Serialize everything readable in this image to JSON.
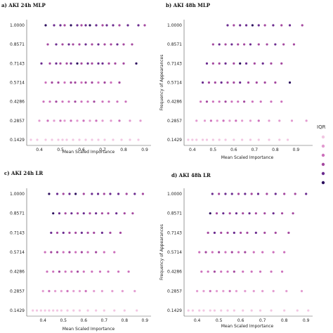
{
  "figure": {
    "legend_title": "IQR",
    "legend_colors": [
      "#f2c6e2",
      "#e29ad0",
      "#cc6fbb",
      "#a4489f",
      "#6b2b8f",
      "#2d0f5e"
    ]
  },
  "chart_data": [
    {
      "type": "scatter",
      "title": "a) AKI 24h MLP",
      "xlabel": "Mean Scaled Importance",
      "ylabel": "",
      "xlim": [
        0.34,
        0.93
      ],
      "xticks": [
        0.4,
        0.5,
        0.6,
        0.7,
        0.8,
        0.9
      ],
      "yticks": [
        "0.1429",
        "0.2857",
        "0.4286",
        "0.5714",
        "0.7143",
        "0.8571",
        "1.0000"
      ],
      "rows": [
        {
          "y": "1.0000",
          "x": [
            0.43,
            0.47,
            0.5,
            0.52,
            0.55,
            0.58,
            0.6,
            0.62,
            0.64,
            0.67,
            0.7,
            0.72,
            0.75,
            0.78,
            0.82,
            0.87,
            0.9
          ],
          "c": [
            5,
            4,
            4,
            3,
            5,
            4,
            3,
            4,
            5,
            4,
            3,
            4,
            4,
            3,
            4,
            4,
            3
          ]
        },
        {
          "y": "0.8571",
          "x": [
            0.44,
            0.48,
            0.51,
            0.54,
            0.56,
            0.59,
            0.62,
            0.65,
            0.68,
            0.71,
            0.74,
            0.77,
            0.8,
            0.84
          ],
          "c": [
            3,
            4,
            3,
            4,
            3,
            3,
            4,
            3,
            4,
            3,
            3,
            4,
            3,
            3
          ]
        },
        {
          "y": "0.7143",
          "x": [
            0.41,
            0.45,
            0.48,
            0.5,
            0.53,
            0.55,
            0.58,
            0.6,
            0.63,
            0.65,
            0.68,
            0.7,
            0.73,
            0.76,
            0.8,
            0.86
          ],
          "c": [
            4,
            3,
            4,
            3,
            3,
            4,
            5,
            3,
            4,
            3,
            4,
            4,
            3,
            3,
            3,
            5
          ]
        },
        {
          "y": "0.5714",
          "x": [
            0.43,
            0.46,
            0.49,
            0.52,
            0.55,
            0.57,
            0.6,
            0.62,
            0.65,
            0.68,
            0.71,
            0.74,
            0.78
          ],
          "c": [
            2,
            3,
            3,
            2,
            3,
            3,
            2,
            3,
            3,
            2,
            3,
            2,
            3
          ]
        },
        {
          "y": "0.4286",
          "x": [
            0.42,
            0.45,
            0.48,
            0.51,
            0.54,
            0.57,
            0.6,
            0.63,
            0.66,
            0.7,
            0.73,
            0.77,
            0.81
          ],
          "c": [
            2,
            2,
            3,
            2,
            2,
            3,
            2,
            2,
            3,
            2,
            2,
            2,
            2
          ]
        },
        {
          "y": "0.2857",
          "x": [
            0.4,
            0.44,
            0.47,
            0.5,
            0.52,
            0.55,
            0.58,
            0.61,
            0.64,
            0.67,
            0.7,
            0.74,
            0.78,
            0.83,
            0.88
          ],
          "c": [
            1,
            2,
            1,
            2,
            1,
            2,
            1,
            2,
            1,
            2,
            1,
            1,
            2,
            1,
            1
          ]
        },
        {
          "y": "0.1429",
          "x": [
            0.36,
            0.39,
            0.43,
            0.46,
            0.49,
            0.51,
            0.53,
            0.56,
            0.59,
            0.62,
            0.65,
            0.68,
            0.71,
            0.75,
            0.79,
            0.83,
            0.87
          ],
          "c": [
            0,
            0,
            0,
            0,
            0,
            0,
            0,
            0,
            0,
            0,
            0,
            0,
            0,
            0,
            0,
            0,
            0
          ]
        }
      ]
    },
    {
      "type": "scatter",
      "title": "b) AKI 48h MLP",
      "xlabel": "Mean Scaled Importance",
      "ylabel": "Frequency of Appearances",
      "xlim": [
        0.36,
        0.98
      ],
      "xticks": [
        0.4,
        0.5,
        0.6,
        0.7,
        0.8,
        0.9
      ],
      "yticks": [
        "0.1429",
        "0.2857",
        "0.4286",
        "0.5714",
        "0.7143",
        "0.8571",
        "1.0000"
      ],
      "rows": [
        {
          "y": "1.0000",
          "x": [
            0.57,
            0.6,
            0.63,
            0.66,
            0.69,
            0.72,
            0.75,
            0.79,
            0.83,
            0.87,
            0.93
          ],
          "c": [
            4,
            3,
            4,
            4,
            5,
            4,
            3,
            4,
            3,
            4,
            3
          ]
        },
        {
          "y": "0.8571",
          "x": [
            0.5,
            0.53,
            0.56,
            0.59,
            0.62,
            0.65,
            0.68,
            0.72,
            0.76,
            0.8,
            0.84,
            0.89
          ],
          "c": [
            3,
            4,
            3,
            4,
            3,
            3,
            4,
            3,
            3,
            4,
            3,
            3
          ]
        },
        {
          "y": "0.7143",
          "x": [
            0.47,
            0.5,
            0.53,
            0.56,
            0.6,
            0.63,
            0.66,
            0.7,
            0.74,
            0.78,
            0.83
          ],
          "c": [
            4,
            3,
            3,
            4,
            3,
            5,
            4,
            3,
            4,
            3,
            3
          ]
        },
        {
          "y": "0.5714",
          "x": [
            0.45,
            0.48,
            0.51,
            0.54,
            0.57,
            0.6,
            0.63,
            0.67,
            0.71,
            0.75,
            0.8,
            0.87
          ],
          "c": [
            4,
            3,
            3,
            4,
            3,
            3,
            4,
            3,
            3,
            3,
            3,
            5
          ]
        },
        {
          "y": "0.4286",
          "x": [
            0.44,
            0.47,
            0.5,
            0.53,
            0.56,
            0.59,
            0.62,
            0.65,
            0.69,
            0.73,
            0.78,
            0.83
          ],
          "c": [
            2,
            3,
            2,
            2,
            3,
            2,
            2,
            3,
            2,
            2,
            2,
            2
          ]
        },
        {
          "y": "0.2857",
          "x": [
            0.42,
            0.46,
            0.49,
            0.52,
            0.55,
            0.58,
            0.61,
            0.64,
            0.68,
            0.72,
            0.77,
            0.82,
            0.88,
            0.95
          ],
          "c": [
            1,
            1,
            2,
            1,
            2,
            1,
            2,
            1,
            1,
            2,
            1,
            1,
            1,
            1
          ]
        },
        {
          "y": "0.1429",
          "x": [
            0.38,
            0.4,
            0.42,
            0.45,
            0.47,
            0.5,
            0.53,
            0.56,
            0.6,
            0.64,
            0.68,
            0.72,
            0.77,
            0.82,
            0.86
          ],
          "c": [
            0,
            0,
            0,
            0,
            0,
            0,
            0,
            0,
            0,
            0,
            0,
            0,
            0,
            0,
            0
          ]
        }
      ]
    },
    {
      "type": "scatter",
      "title": "c) AKI 24h LR",
      "xlabel": "Mean Scaled Importance",
      "ylabel": "",
      "xlim": [
        0.32,
        0.93
      ],
      "xticks": [
        0.4,
        0.5,
        0.6,
        0.7,
        0.8,
        0.9
      ],
      "yticks": [
        "0.1429",
        "0.2857",
        "0.4286",
        "0.5714",
        "0.7143",
        "0.8571",
        "1.0000"
      ],
      "rows": [
        {
          "y": "1.0000",
          "x": [
            0.43,
            0.47,
            0.5,
            0.53,
            0.56,
            0.6,
            0.64,
            0.67,
            0.7,
            0.73,
            0.77,
            0.81,
            0.85,
            0.89
          ],
          "c": [
            5,
            4,
            3,
            4,
            5,
            3,
            4,
            4,
            3,
            4,
            4,
            3,
            4,
            3
          ]
        },
        {
          "y": "0.8571",
          "x": [
            0.45,
            0.48,
            0.51,
            0.54,
            0.57,
            0.6,
            0.63,
            0.66,
            0.69,
            0.72,
            0.76,
            0.8,
            0.84
          ],
          "c": [
            5,
            4,
            3,
            4,
            3,
            4,
            3,
            4,
            3,
            3,
            4,
            3,
            3
          ]
        },
        {
          "y": "0.7143",
          "x": [
            0.44,
            0.47,
            0.5,
            0.53,
            0.56,
            0.59,
            0.62,
            0.65,
            0.69,
            0.73,
            0.78
          ],
          "c": [
            4,
            3,
            4,
            3,
            3,
            4,
            3,
            3,
            4,
            3,
            3
          ]
        },
        {
          "y": "0.5714",
          "x": [
            0.41,
            0.44,
            0.47,
            0.5,
            0.53,
            0.56,
            0.59,
            0.62,
            0.66,
            0.7,
            0.75
          ],
          "c": [
            2,
            3,
            3,
            2,
            3,
            2,
            3,
            2,
            3,
            2,
            2
          ]
        },
        {
          "y": "0.4286",
          "x": [
            0.42,
            0.45,
            0.48,
            0.51,
            0.54,
            0.57,
            0.6,
            0.64,
            0.68,
            0.72,
            0.77,
            0.82
          ],
          "c": [
            2,
            2,
            3,
            2,
            2,
            3,
            2,
            2,
            2,
            2,
            2,
            2
          ]
        },
        {
          "y": "0.2857",
          "x": [
            0.4,
            0.43,
            0.46,
            0.49,
            0.52,
            0.55,
            0.58,
            0.61,
            0.65,
            0.69,
            0.74,
            0.79,
            0.85
          ],
          "c": [
            1,
            2,
            1,
            1,
            2,
            1,
            1,
            2,
            1,
            1,
            1,
            1,
            1
          ]
        },
        {
          "y": "0.1429",
          "x": [
            0.35,
            0.37,
            0.39,
            0.41,
            0.43,
            0.45,
            0.47,
            0.49,
            0.52,
            0.55,
            0.58,
            0.62,
            0.66,
            0.7,
            0.75,
            0.8,
            0.86
          ],
          "c": [
            0,
            0,
            0,
            0,
            0,
            0,
            0,
            0,
            0,
            0,
            0,
            0,
            0,
            0,
            0,
            0,
            0
          ]
        }
      ]
    },
    {
      "type": "scatter",
      "title": "d) AKI 48h LR",
      "xlabel": "Mean Scaled Importance",
      "ylabel": "Frequency of Appearances",
      "xlim": [
        0.34,
        0.93
      ],
      "xticks": [
        0.4,
        0.5,
        0.6,
        0.7,
        0.8,
        0.9
      ],
      "yticks": [
        "0.1429",
        "0.2857",
        "0.4286",
        "0.5714",
        "0.7143",
        "0.8571",
        "1.0000"
      ],
      "rows": [
        {
          "y": "1.0000",
          "x": [
            0.47,
            0.5,
            0.53,
            0.56,
            0.59,
            0.62,
            0.65,
            0.68,
            0.72,
            0.76,
            0.8,
            0.85,
            0.9
          ],
          "c": [
            4,
            3,
            4,
            4,
            3,
            4,
            3,
            4,
            3,
            4,
            3,
            3,
            4
          ]
        },
        {
          "y": "0.8571",
          "x": [
            0.46,
            0.49,
            0.52,
            0.55,
            0.58,
            0.61,
            0.64,
            0.67,
            0.71,
            0.75,
            0.79,
            0.84
          ],
          "c": [
            5,
            3,
            4,
            3,
            4,
            3,
            4,
            3,
            3,
            4,
            3,
            3
          ]
        },
        {
          "y": "0.7143",
          "x": [
            0.45,
            0.48,
            0.51,
            0.54,
            0.57,
            0.6,
            0.63,
            0.67,
            0.71,
            0.76,
            0.82
          ],
          "c": [
            3,
            4,
            3,
            3,
            4,
            3,
            3,
            4,
            3,
            3,
            3
          ]
        },
        {
          "y": "0.5714",
          "x": [
            0.41,
            0.44,
            0.47,
            0.5,
            0.53,
            0.56,
            0.59,
            0.62,
            0.66,
            0.7,
            0.75,
            0.8
          ],
          "c": [
            2,
            3,
            2,
            3,
            2,
            3,
            2,
            3,
            2,
            2,
            2,
            2
          ]
        },
        {
          "y": "0.4286",
          "x": [
            0.42,
            0.45,
            0.48,
            0.51,
            0.54,
            0.57,
            0.61,
            0.65,
            0.69,
            0.74,
            0.79
          ],
          "c": [
            2,
            2,
            3,
            2,
            2,
            3,
            2,
            2,
            2,
            2,
            2
          ]
        },
        {
          "y": "0.2857",
          "x": [
            0.4,
            0.43,
            0.46,
            0.49,
            0.52,
            0.55,
            0.58,
            0.62,
            0.66,
            0.7,
            0.75,
            0.81,
            0.88
          ],
          "c": [
            1,
            1,
            2,
            1,
            1,
            2,
            1,
            1,
            1,
            1,
            1,
            1,
            1
          ]
        },
        {
          "y": "0.1429",
          "x": [
            0.36,
            0.38,
            0.41,
            0.43,
            0.46,
            0.48,
            0.51,
            0.54,
            0.57,
            0.61,
            0.65,
            0.69,
            0.74,
            0.8,
            0.86,
            0.91
          ],
          "c": [
            0,
            0,
            0,
            0,
            0,
            0,
            0,
            0,
            0,
            0,
            0,
            0,
            0,
            0,
            0,
            0
          ]
        }
      ]
    }
  ]
}
